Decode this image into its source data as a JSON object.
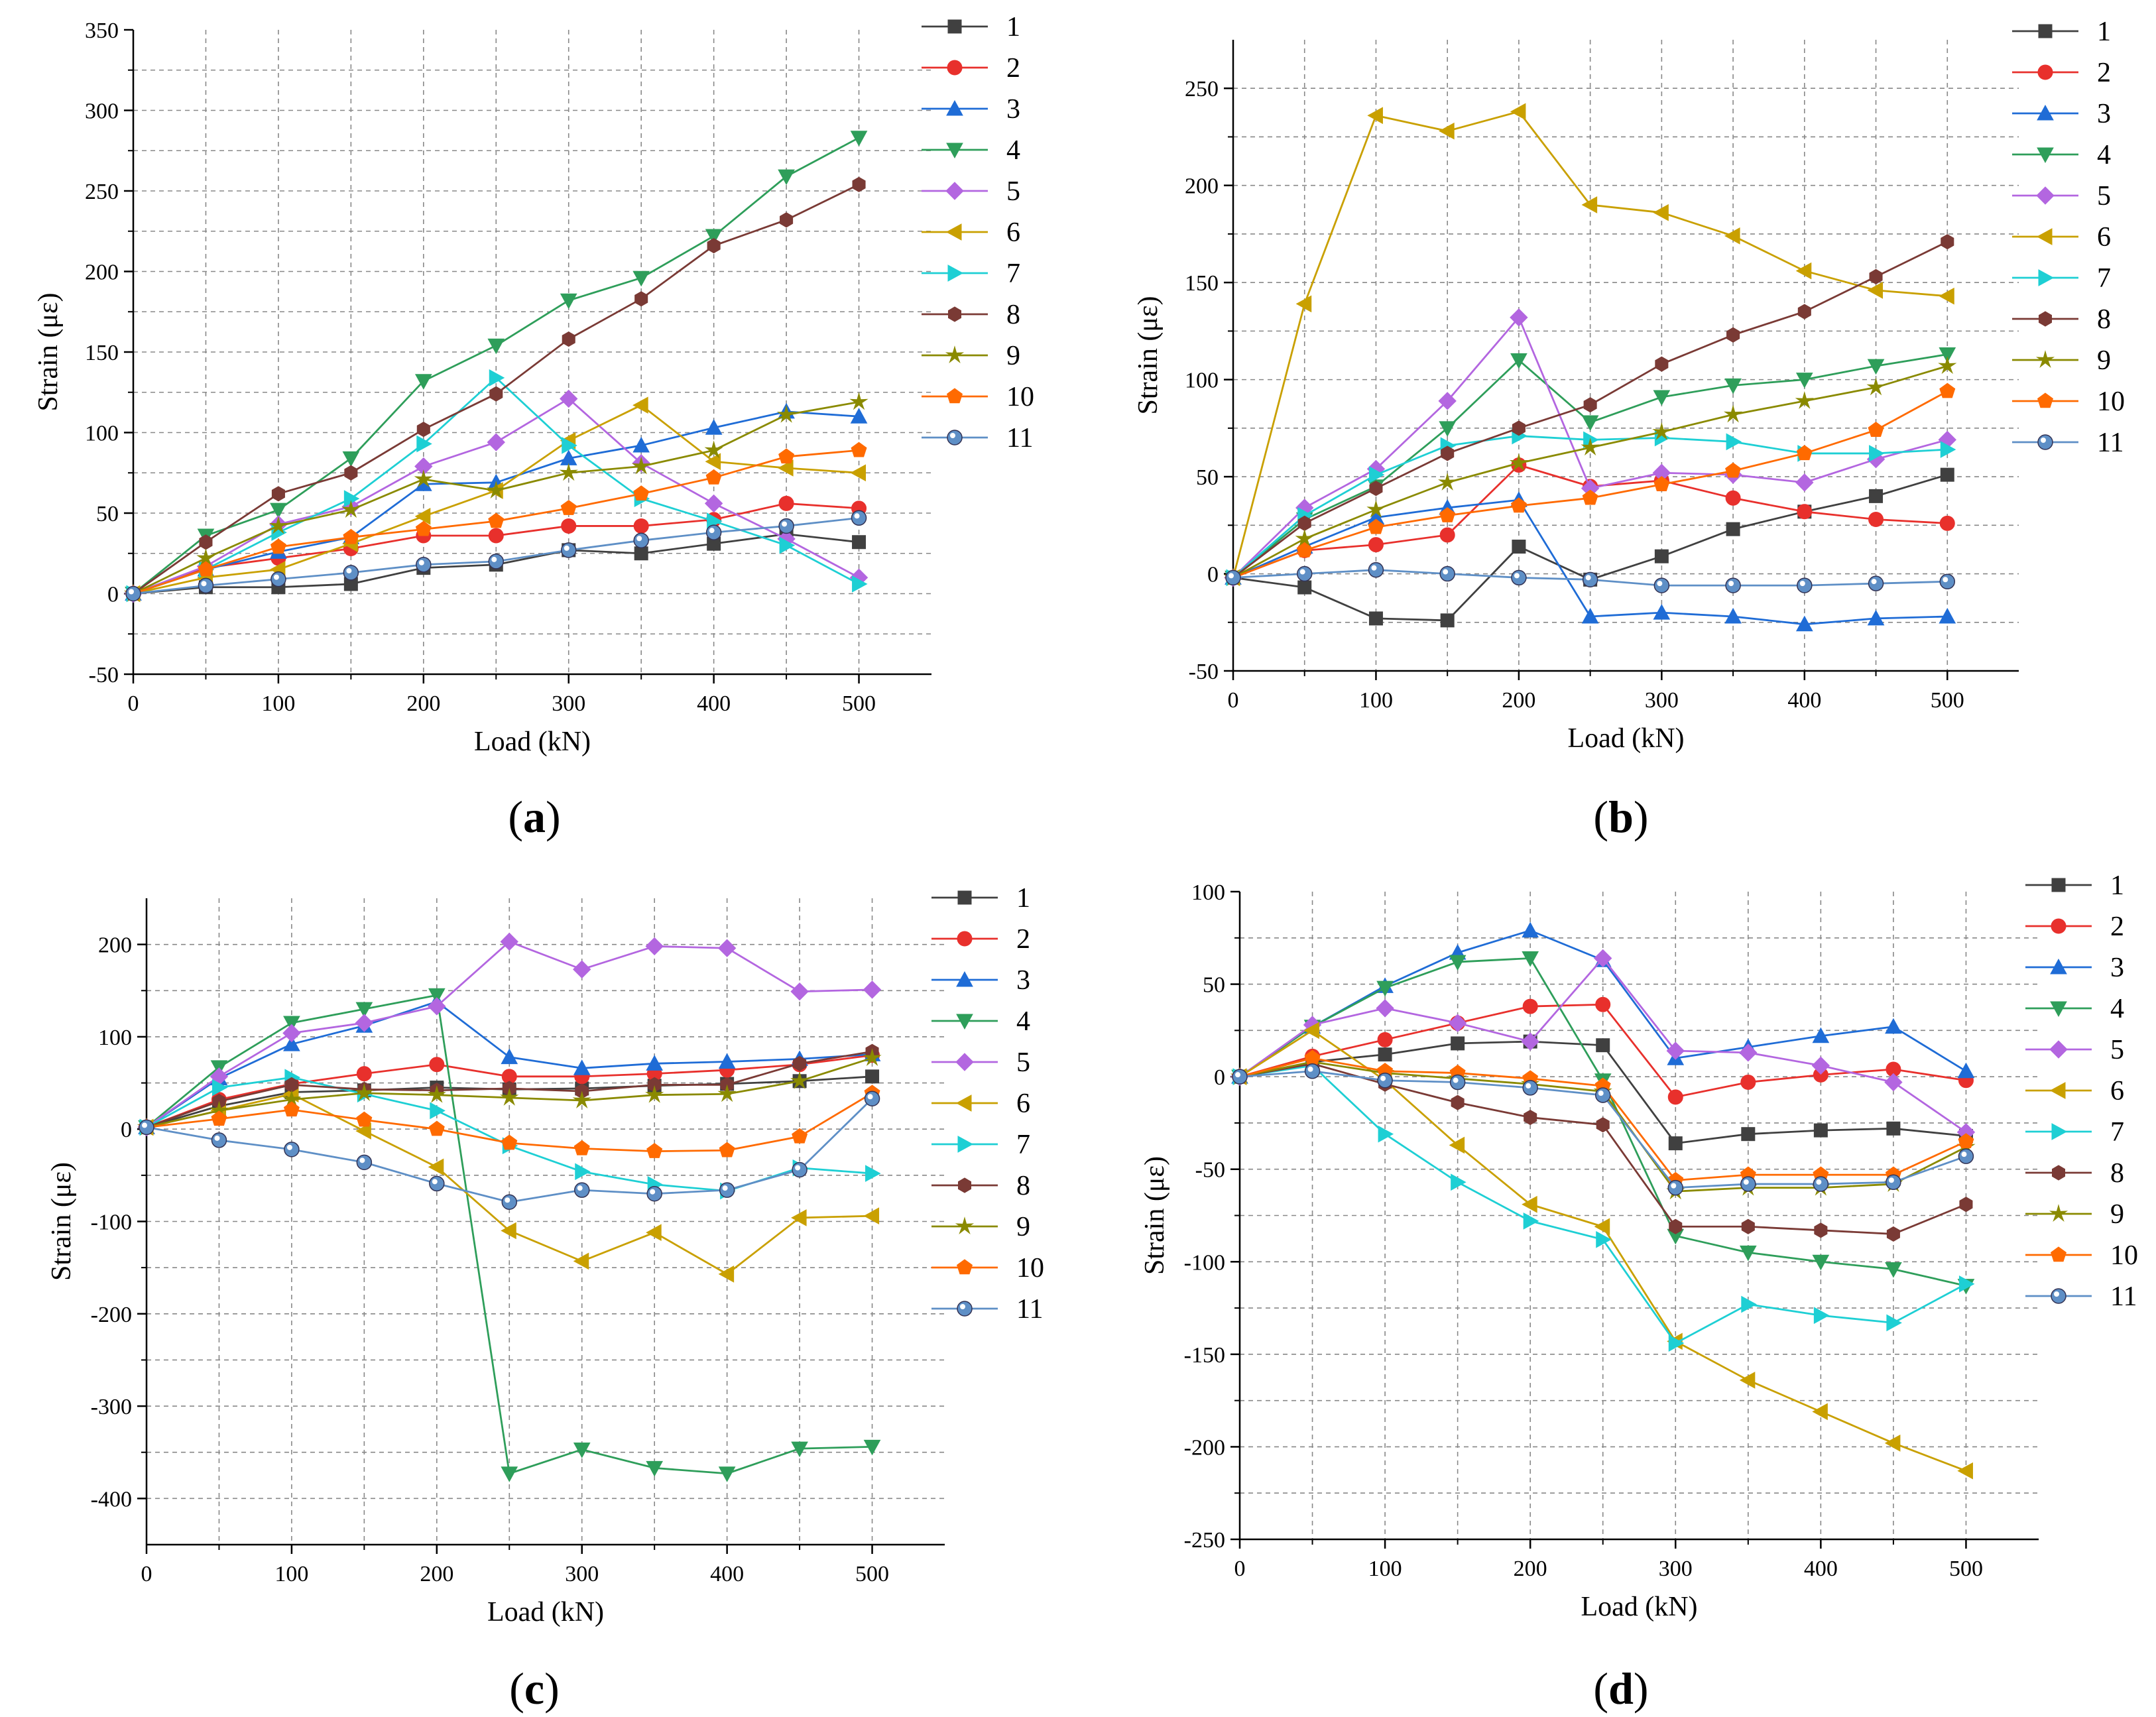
{
  "figure": {
    "panels": [
      "a",
      "b",
      "c",
      "d"
    ]
  },
  "series_colors": [
    "#404040",
    "#e8302c",
    "#1f6cd6",
    "#2e9e5a",
    "#b366e0",
    "#c9a000",
    "#1ecfd4",
    "#7a3a35",
    "#8a8a00",
    "#ff6a00",
    "#5e8fc6"
  ],
  "chart_data": [
    {
      "id": "a",
      "type": "line",
      "panel_label": "(a)",
      "panel_letter": "a",
      "xlabel": "Load (kN)",
      "ylabel": "Strain (με)",
      "xlim": [
        0,
        550
      ],
      "ylim": [
        -50,
        350
      ],
      "xticks": [
        0,
        100,
        200,
        300,
        400,
        500
      ],
      "yticks": [
        -50,
        0,
        50,
        100,
        150,
        200,
        250,
        300,
        350
      ],
      "x": [
        0,
        50,
        100,
        150,
        200,
        250,
        300,
        350,
        400,
        450,
        500
      ],
      "series": [
        {
          "name": "1",
          "marker": "square",
          "values": [
            0,
            4,
            4,
            6,
            16,
            18,
            27,
            25,
            31,
            37,
            32
          ]
        },
        {
          "name": "2",
          "marker": "circle",
          "values": [
            0,
            16,
            22,
            28,
            36,
            36,
            42,
            42,
            46,
            56,
            53
          ]
        },
        {
          "name": "3",
          "marker": "tri-up",
          "values": [
            0,
            15,
            26,
            35,
            68,
            69,
            84,
            92,
            103,
            113,
            110
          ]
        },
        {
          "name": "4",
          "marker": "tri-down",
          "values": [
            0,
            36,
            52,
            84,
            132,
            154,
            182,
            196,
            222,
            259,
            283
          ]
        },
        {
          "name": "5",
          "marker": "diamond",
          "values": [
            0,
            17,
            43,
            54,
            79,
            94,
            121,
            81,
            56,
            34,
            10
          ]
        },
        {
          "name": "6",
          "marker": "tri-left",
          "values": [
            0,
            10,
            15,
            31,
            48,
            64,
            95,
            117,
            82,
            78,
            75
          ]
        },
        {
          "name": "7",
          "marker": "tri-right",
          "values": [
            0,
            15,
            38,
            59,
            93,
            134,
            92,
            59,
            45,
            30,
            6
          ]
        },
        {
          "name": "8",
          "marker": "hexagon",
          "values": [
            0,
            32,
            62,
            75,
            102,
            124,
            158,
            183,
            216,
            232,
            254
          ]
        },
        {
          "name": "9",
          "marker": "star",
          "values": [
            0,
            22,
            42,
            52,
            71,
            64,
            75,
            79,
            89,
            111,
            119
          ]
        },
        {
          "name": "10",
          "marker": "pentagon",
          "values": [
            0,
            15,
            29,
            35,
            40,
            45,
            53,
            62,
            72,
            85,
            89
          ]
        },
        {
          "name": "11",
          "marker": "circle-dot",
          "values": [
            0,
            5,
            9,
            13,
            18,
            20,
            27,
            33,
            38,
            42,
            47
          ]
        }
      ]
    },
    {
      "id": "b",
      "type": "line",
      "panel_label": "(b)",
      "panel_letter": "b",
      "xlabel": "Load (kN)",
      "ylabel": "Strain (με)",
      "xlim": [
        0,
        550
      ],
      "ylim": [
        -50,
        275
      ],
      "xticks": [
        0,
        100,
        200,
        300,
        400,
        500
      ],
      "yticks": [
        -50,
        0,
        50,
        100,
        150,
        200,
        250
      ],
      "x": [
        0,
        50,
        100,
        150,
        200,
        250,
        300,
        350,
        400,
        450,
        500
      ],
      "series": [
        {
          "name": "1",
          "marker": "square",
          "values": [
            -2,
            -7,
            -23,
            -24,
            14,
            -3,
            9,
            23,
            32,
            40,
            51
          ]
        },
        {
          "name": "2",
          "marker": "circle",
          "values": [
            -2,
            12,
            15,
            20,
            56,
            45,
            48,
            39,
            32,
            28,
            26
          ]
        },
        {
          "name": "3",
          "marker": "tri-up",
          "values": [
            -2,
            14,
            29,
            34,
            38,
            -22,
            -20,
            -22,
            -26,
            -23,
            -22
          ]
        },
        {
          "name": "4",
          "marker": "tri-down",
          "values": [
            -2,
            28,
            45,
            75,
            110,
            78,
            91,
            97,
            100,
            107,
            113
          ]
        },
        {
          "name": "5",
          "marker": "diamond",
          "values": [
            -2,
            34,
            54,
            89,
            132,
            44,
            52,
            51,
            47,
            59,
            69
          ]
        },
        {
          "name": "6",
          "marker": "tri-left",
          "values": [
            -2,
            139,
            236,
            228,
            238,
            190,
            186,
            174,
            156,
            146,
            143
          ]
        },
        {
          "name": "7",
          "marker": "tri-right",
          "values": [
            -2,
            30,
            51,
            66,
            71,
            69,
            70,
            68,
            62,
            62,
            64
          ]
        },
        {
          "name": "8",
          "marker": "hexagon",
          "values": [
            -2,
            26,
            44,
            62,
            75,
            87,
            108,
            123,
            135,
            153,
            171
          ]
        },
        {
          "name": "9",
          "marker": "star",
          "values": [
            -2,
            18,
            33,
            47,
            57,
            65,
            73,
            82,
            89,
            96,
            107
          ]
        },
        {
          "name": "10",
          "marker": "pentagon",
          "values": [
            -2,
            12,
            24,
            30,
            35,
            39,
            46,
            53,
            62,
            74,
            94
          ]
        },
        {
          "name": "11",
          "marker": "circle-dot",
          "values": [
            -2,
            0,
            2,
            0,
            -2,
            -3,
            -6,
            -6,
            -6,
            -5,
            -4
          ]
        }
      ]
    },
    {
      "id": "c",
      "type": "line",
      "panel_label": "(c)",
      "panel_letter": "c",
      "xlabel": "Load (kN)",
      "ylabel": "Strain (με)",
      "xlim": [
        0,
        550
      ],
      "ylim": [
        -450,
        250
      ],
      "xticks": [
        0,
        100,
        200,
        300,
        400,
        500
      ],
      "yticks": [
        -400,
        -300,
        -200,
        -100,
        0,
        100,
        200
      ],
      "x": [
        0,
        50,
        100,
        150,
        200,
        250,
        300,
        350,
        400,
        450,
        500
      ],
      "series": [
        {
          "name": "1",
          "marker": "square",
          "values": [
            2,
            25,
            40,
            42,
            45,
            43,
            44,
            47,
            49,
            52,
            57
          ]
        },
        {
          "name": "2",
          "marker": "circle",
          "values": [
            2,
            32,
            49,
            60,
            70,
            57,
            57,
            60,
            64,
            70,
            80
          ]
        },
        {
          "name": "3",
          "marker": "tri-up",
          "values": [
            2,
            55,
            92,
            112,
            138,
            78,
            66,
            71,
            73,
            76,
            81
          ]
        },
        {
          "name": "4",
          "marker": "tri-down",
          "values": [
            2,
            67,
            115,
            130,
            145,
            -373,
            -347,
            -367,
            -373,
            -346,
            -344
          ]
        },
        {
          "name": "5",
          "marker": "diamond",
          "values": [
            2,
            57,
            104,
            115,
            133,
            203,
            173,
            198,
            196,
            149,
            151
          ]
        },
        {
          "name": "6",
          "marker": "tri-left",
          "values": [
            2,
            20,
            38,
            -2,
            -41,
            -110,
            -143,
            -112,
            -157,
            -96,
            -94
          ]
        },
        {
          "name": "7",
          "marker": "tri-right",
          "values": [
            2,
            45,
            56,
            38,
            20,
            -18,
            -46,
            -60,
            -67,
            -42,
            -48
          ]
        },
        {
          "name": "8",
          "marker": "hexagon",
          "values": [
            2,
            30,
            48,
            43,
            42,
            44,
            41,
            48,
            48,
            71,
            84
          ]
        },
        {
          "name": "9",
          "marker": "star",
          "values": [
            2,
            20,
            32,
            39,
            37,
            34,
            31,
            37,
            38,
            52,
            77
          ]
        },
        {
          "name": "10",
          "marker": "pentagon",
          "values": [
            2,
            11,
            21,
            10,
            0,
            -15,
            -21,
            -24,
            -23,
            -8,
            39
          ]
        },
        {
          "name": "11",
          "marker": "circle-dot",
          "values": [
            2,
            -12,
            -22,
            -36,
            -59,
            -79,
            -66,
            -70,
            -66,
            -44,
            33
          ]
        }
      ]
    },
    {
      "id": "d",
      "type": "line",
      "panel_label": "(d)",
      "panel_letter": "d",
      "xlabel": "Load (kN)",
      "ylabel": "Strain (με)",
      "xlim": [
        0,
        550
      ],
      "ylim": [
        -250,
        100
      ],
      "xticks": [
        0,
        100,
        200,
        300,
        400,
        500
      ],
      "yticks": [
        -250,
        -200,
        -150,
        -100,
        -50,
        0,
        50,
        100
      ],
      "x": [
        0,
        50,
        100,
        150,
        200,
        250,
        300,
        350,
        400,
        450,
        500
      ],
      "series": [
        {
          "name": "1",
          "marker": "square",
          "values": [
            0,
            8,
            12,
            18,
            19,
            17,
            -36,
            -31,
            -29,
            -28,
            -32
          ]
        },
        {
          "name": "2",
          "marker": "circle",
          "values": [
            0,
            11,
            20,
            29,
            38,
            39,
            -11,
            -3,
            1,
            4,
            -2
          ]
        },
        {
          "name": "3",
          "marker": "tri-up",
          "values": [
            0,
            27,
            49,
            67,
            79,
            63,
            10,
            16,
            22,
            27,
            3
          ]
        },
        {
          "name": "4",
          "marker": "tri-down",
          "values": [
            0,
            27,
            48,
            62,
            64,
            -2,
            -86,
            -95,
            -100,
            -104,
            -113
          ]
        },
        {
          "name": "5",
          "marker": "diamond",
          "values": [
            0,
            28,
            37,
            29,
            19,
            64,
            14,
            13,
            6,
            -3,
            -30
          ]
        },
        {
          "name": "6",
          "marker": "tri-left",
          "values": [
            0,
            25,
            -2,
            -37,
            -69,
            -81,
            -143,
            -164,
            -181,
            -198,
            -213
          ]
        },
        {
          "name": "7",
          "marker": "tri-right",
          "values": [
            0,
            6,
            -31,
            -57,
            -78,
            -88,
            -144,
            -123,
            -129,
            -133,
            -112
          ]
        },
        {
          "name": "8",
          "marker": "hexagon",
          "values": [
            0,
            7,
            -4,
            -14,
            -22,
            -26,
            -81,
            -81,
            -83,
            -85,
            -69
          ]
        },
        {
          "name": "9",
          "marker": "star",
          "values": [
            0,
            8,
            2,
            -1,
            -4,
            -8,
            -62,
            -60,
            -60,
            -58,
            -38
          ]
        },
        {
          "name": "10",
          "marker": "pentagon",
          "values": [
            0,
            10,
            3,
            2,
            -1,
            -5,
            -56,
            -53,
            -53,
            -53,
            -35
          ]
        },
        {
          "name": "11",
          "marker": "circle-dot",
          "values": [
            0,
            3,
            -2,
            -3,
            -6,
            -10,
            -60,
            -58,
            -58,
            -57,
            -43
          ]
        }
      ]
    }
  ]
}
